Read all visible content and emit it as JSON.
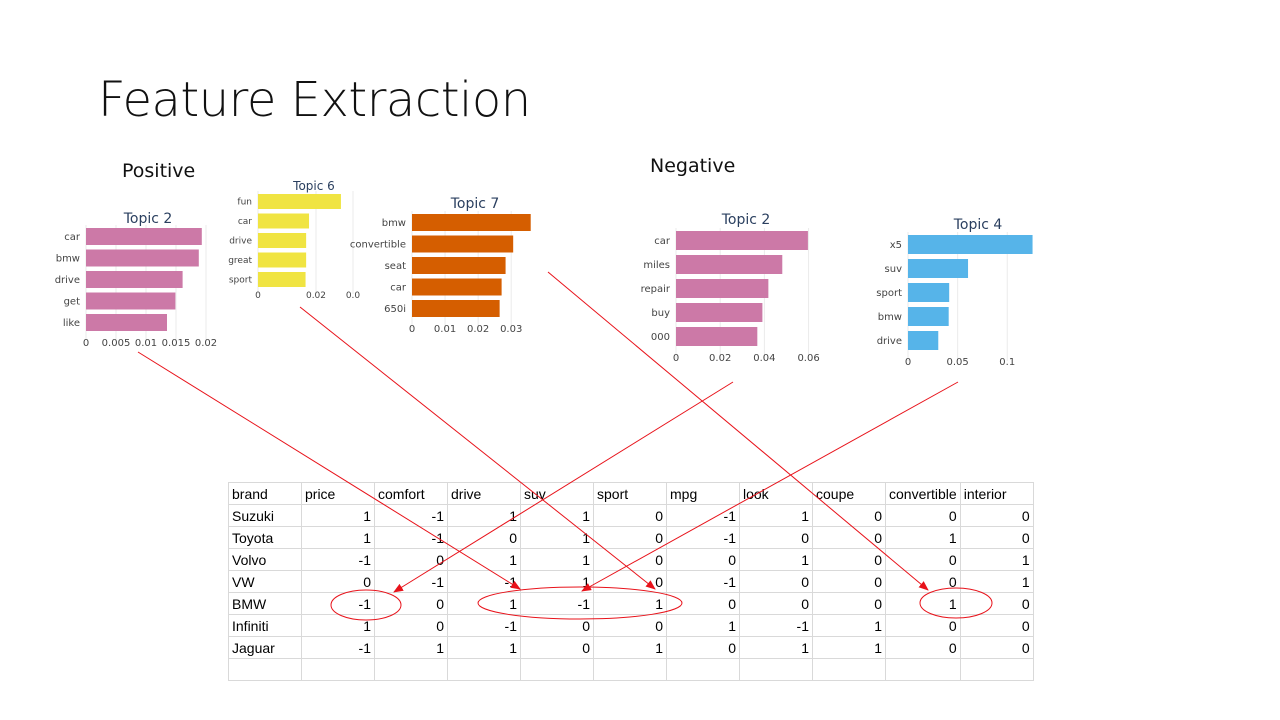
{
  "slide": {
    "title": "Feature Extraction"
  },
  "groups": {
    "positive": "Positive",
    "negative": "Negative"
  },
  "chart_data": [
    {
      "type": "bar",
      "orientation": "horizontal",
      "title": "Topic 2",
      "group": "Positive",
      "categories": [
        "car",
        "bmw",
        "drive",
        "get",
        "like"
      ],
      "values": [
        0.0193,
        0.0188,
        0.0161,
        0.0149,
        0.0135
      ],
      "xlim": [
        0,
        0.02
      ],
      "xticks": [
        "0",
        "0.005",
        "0.01",
        "0.015",
        "0.02"
      ],
      "color": "#cc79a7"
    },
    {
      "type": "bar",
      "orientation": "horizontal",
      "title": "Topic 6",
      "group": "Positive",
      "categories": [
        "fun",
        "car",
        "drive",
        "great",
        "sport"
      ],
      "values": [
        0.0286,
        0.0176,
        0.0166,
        0.0166,
        0.0164
      ],
      "xlim": [
        0,
        0.03
      ],
      "xticks": [
        "0",
        "0.02",
        "0.0"
      ],
      "color": "#f0e442"
    },
    {
      "type": "bar",
      "orientation": "horizontal",
      "title": "Topic 7",
      "group": "Positive",
      "categories": [
        "bmw",
        "convertible",
        "seat",
        "car",
        "650i"
      ],
      "values": [
        0.0359,
        0.0306,
        0.0283,
        0.0271,
        0.0265
      ],
      "xlim": [
        0,
        0.0375
      ],
      "xticks": [
        "0",
        "0.01",
        "0.02",
        "0.03"
      ],
      "color": "#d55e00"
    },
    {
      "type": "bar",
      "orientation": "horizontal",
      "title": "Topic 2",
      "group": "Negative",
      "categories": [
        "car",
        "miles",
        "repair",
        "buy",
        "000"
      ],
      "values": [
        0.0597,
        0.0481,
        0.0418,
        0.0391,
        0.0368
      ],
      "xlim": [
        0,
        0.062
      ],
      "xticks": [
        "0",
        "0.02",
        "0.04",
        "0.06"
      ],
      "color": "#cc79a7"
    },
    {
      "type": "bar",
      "orientation": "horizontal",
      "title": "Topic 4",
      "group": "Negative",
      "categories": [
        "x5",
        "suv",
        "sport",
        "bmw",
        "drive"
      ],
      "values": [
        0.1255,
        0.0605,
        0.0415,
        0.041,
        0.0305
      ],
      "xlim": [
        0,
        0.133
      ],
      "xticks": [
        "0",
        "0.05",
        "0.1"
      ],
      "color": "#56b4e9"
    }
  ],
  "table": {
    "columns": [
      "brand",
      "price",
      "comfort",
      "drive",
      "suv",
      "sport",
      "mpg",
      "look",
      "coupe",
      "convertible",
      "interior"
    ],
    "rows": [
      [
        "Suzuki",
        "1",
        "-1",
        "1",
        "1",
        "0",
        "-1",
        "1",
        "0",
        "0",
        "0"
      ],
      [
        "Toyota",
        "1",
        "-1",
        "0",
        "1",
        "0",
        "-1",
        "0",
        "0",
        "1",
        "0"
      ],
      [
        "Volvo",
        "-1",
        "0",
        "1",
        "1",
        "0",
        "0",
        "1",
        "0",
        "0",
        "1"
      ],
      [
        "VW",
        "0",
        "-1",
        "-1",
        "1",
        "0",
        "-1",
        "0",
        "0",
        "0",
        "1"
      ],
      [
        "BMW",
        "-1",
        "0",
        "1",
        "-1",
        "1",
        "0",
        "0",
        "0",
        "1",
        "0"
      ],
      [
        "Infiniti",
        "1",
        "0",
        "-1",
        "0",
        "0",
        "1",
        "-1",
        "1",
        "0",
        "0"
      ],
      [
        "Jaguar",
        "-1",
        "1",
        "1",
        "0",
        "1",
        "0",
        "1",
        "1",
        "0",
        "0"
      ]
    ]
  },
  "annotation_color": "#e8121a"
}
